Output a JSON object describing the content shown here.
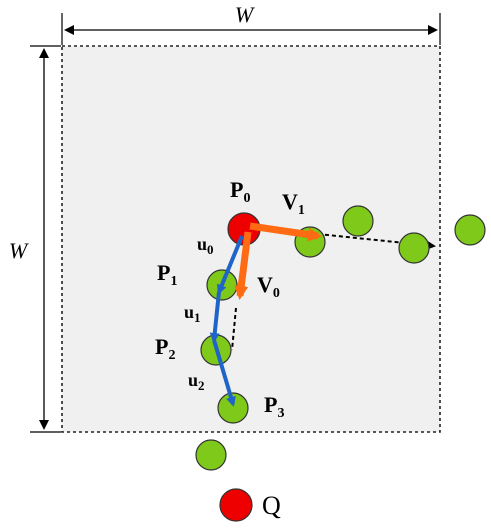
{
  "dimension_labels": {
    "top_width": "W",
    "left_height": "W"
  },
  "points": {
    "p0": {
      "main": "P",
      "sub": "0"
    },
    "p1": {
      "main": "P",
      "sub": "1"
    },
    "p2": {
      "main": "P",
      "sub": "2"
    },
    "p3": {
      "main": "P",
      "sub": "3"
    },
    "q": "Q"
  },
  "vectors": {
    "v0": {
      "main": "V",
      "sub": "0"
    },
    "v1": {
      "main": "V",
      "sub": "1"
    },
    "u0": {
      "main": "u",
      "sub": "0"
    },
    "u1": {
      "main": "u",
      "sub": "1"
    },
    "u2": {
      "main": "u",
      "sub": "2"
    }
  },
  "colors": {
    "region_fill": "#f0f0f0",
    "green_node": "#7ec91a",
    "red_node": "#ee0000",
    "orange_vector": "#ff6a13",
    "blue_vector": "#1f64c8",
    "dashed_border": "#222222"
  }
}
